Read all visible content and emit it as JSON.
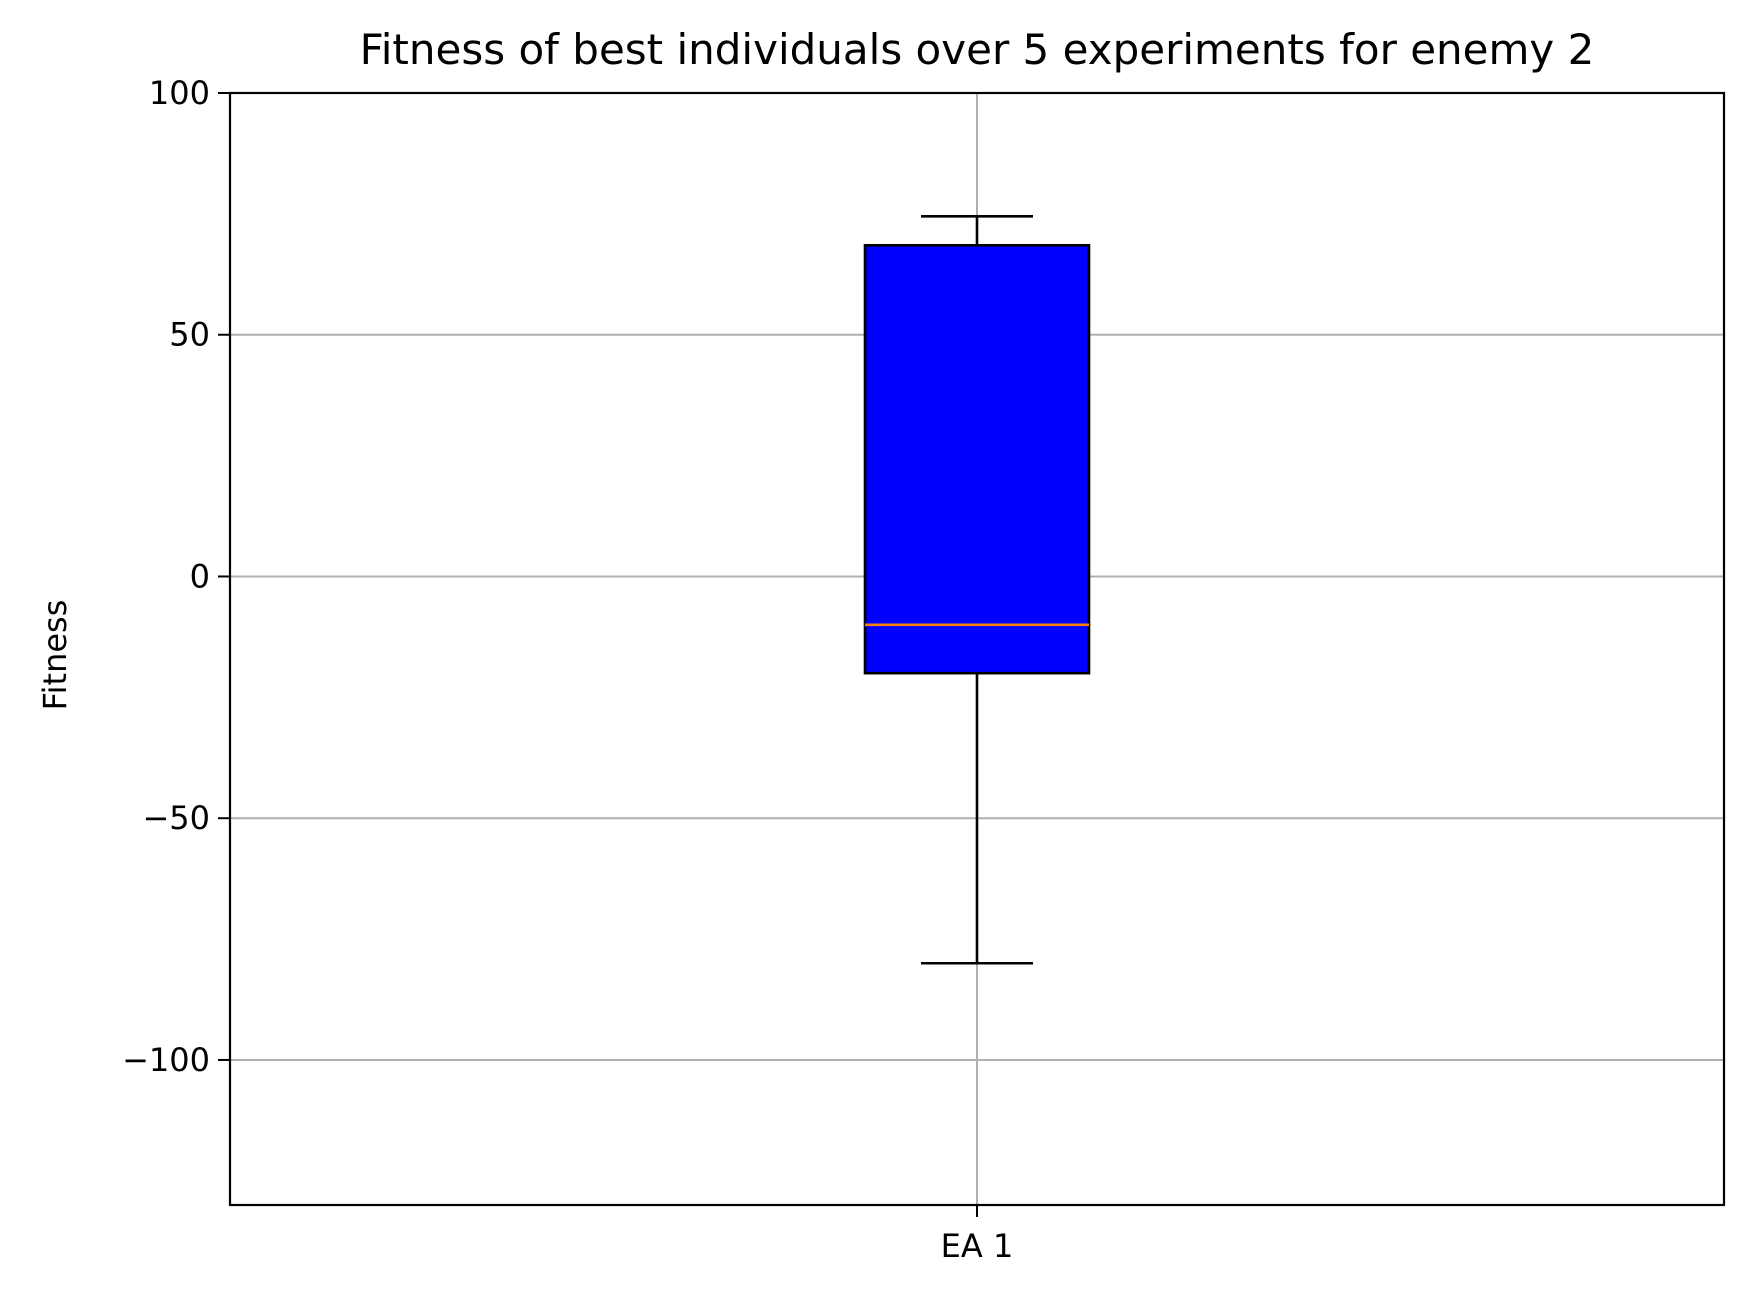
{
  "chart_data": {
    "type": "box",
    "title": "Fitness of best individuals over 5 experiments for enemy 2",
    "xlabel": "",
    "ylabel": "Fitness",
    "ylim": [
      -130,
      100
    ],
    "yticks": [
      {
        "value": 100,
        "label": "100"
      },
      {
        "value": 50,
        "label": "50"
      },
      {
        "value": 0,
        "label": "0"
      },
      {
        "value": -50,
        "label": "−50"
      },
      {
        "value": -100,
        "label": "−100"
      }
    ],
    "grid": true,
    "categories": [
      "EA 1"
    ],
    "boxes": [
      {
        "category": "EA 1",
        "whisker_low": -80,
        "q1": -20,
        "median": -10,
        "q3": 68.5,
        "whisker_high": 74.5
      }
    ],
    "colors": {
      "box_fill": "#0000ff",
      "box_edge": "#000000",
      "median": "#ff7f0e",
      "whisker": "#000000",
      "grid": "#b0b0b0",
      "axes": "#000000"
    }
  }
}
